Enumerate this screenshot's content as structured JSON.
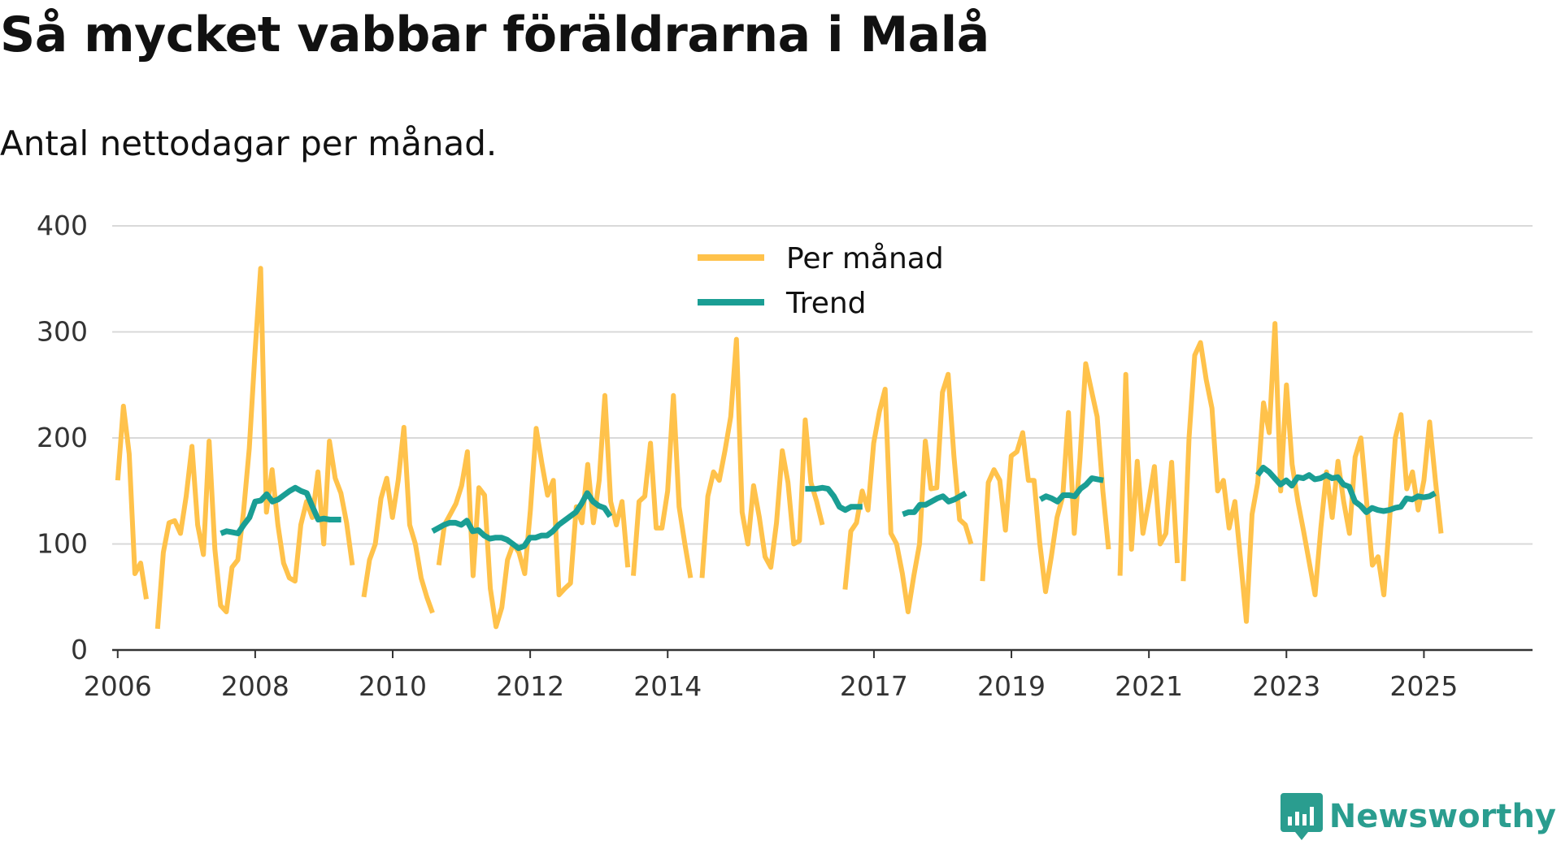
{
  "header": {
    "title": "Så mycket vabbar föräldrarna i Malå",
    "subtitle": "Antal nettodagar per månad."
  },
  "brand": {
    "name": "Newsworthy",
    "icon": "bar-chart-speech-bubble-icon"
  },
  "colors": {
    "per_month": "#ffc24b",
    "trend": "#1a9e94",
    "grid": "#d9d9d9",
    "axis": "#333333"
  },
  "chart_data": {
    "type": "line",
    "title": "Så mycket vabbar föräldrarna i Malå",
    "subtitle": "Antal nettodagar per månad.",
    "xlabel": "",
    "ylabel": "",
    "ylim": [
      0,
      400
    ],
    "xlim": [
      2005.92,
      2026.58
    ],
    "yticks": [
      0,
      100,
      200,
      300,
      400
    ],
    "xticks": [
      {
        "value": 2006.0,
        "label": "2006"
      },
      {
        "value": 2008.0,
        "label": "2008"
      },
      {
        "value": 2010.0,
        "label": "2010"
      },
      {
        "value": 2012.0,
        "label": "2012"
      },
      {
        "value": 2014.0,
        "label": "2014"
      },
      {
        "value": 2017.0,
        "label": "2017"
      },
      {
        "value": 2019.0,
        "label": "2019"
      },
      {
        "value": 2021.0,
        "label": "2021"
      },
      {
        "value": 2023.0,
        "label": "2023"
      },
      {
        "value": 2025.0,
        "label": "2025"
      }
    ],
    "legend_position": "top-center",
    "series": [
      {
        "name": "Per månad",
        "segments": [
          {
            "start": 2006.0,
            "values": [
              160,
              230,
              185,
              72,
              82,
              48
            ]
          },
          {
            "start": 2006.58,
            "values": [
              20,
              92,
              120,
              122,
              110,
              145,
              192,
              118,
              90,
              197,
              95,
              42,
              36,
              78,
              85,
              130,
              190,
              280,
              360,
              130,
              170,
              118,
              82,
              68,
              65,
              118,
              140,
              125,
              168,
              100,
              197,
              162,
              148,
              120,
              80
            ]
          },
          {
            "start": 2009.58,
            "values": [
              50,
              85,
              100,
              143,
              162,
              125,
              160,
              210,
              118,
              100,
              68,
              50,
              35
            ]
          },
          {
            "start": 2010.67,
            "values": [
              80,
              118,
              128,
              138,
              155,
              187,
              70,
              153,
              146,
              58,
              22,
              40,
              85,
              100,
              92,
              72,
              132,
              209,
              176,
              146,
              160,
              52,
              58,
              63,
              135,
              120,
              175,
              120,
              160,
              240,
              140,
              118,
              140,
              78
            ]
          },
          {
            "start": 2013.5,
            "values": [
              70,
              140,
              145,
              195,
              115,
              115,
              150,
              240,
              135,
              100,
              68
            ]
          },
          {
            "start": 2014.5,
            "values": [
              68,
              145,
              168,
              160,
              188,
              220,
              293,
              130,
              100,
              155,
              125,
              88,
              78,
              120,
              188,
              158,
              100,
              103,
              217,
              158,
              140,
              118
            ]
          },
          {
            "start": 2016.58,
            "values": [
              57,
              112,
              120,
              150,
              132,
              195,
              225,
              246,
              110,
              100,
              72,
              36,
              70,
              100,
              197,
              152,
              153,
              243,
              260,
              183,
              123,
              118,
              100
            ]
          },
          {
            "start": 2018.58,
            "values": [
              65,
              158,
              170,
              160,
              113,
              183,
              187,
              205,
              160,
              160,
              100,
              55,
              88,
              125,
              145,
              224,
              110,
              180,
              270,
              245,
              220,
              150,
              95
            ]
          },
          {
            "start": 2020.58,
            "values": [
              70,
              260,
              95,
              178,
              110,
              140,
              173,
              100,
              110,
              177,
              82
            ]
          },
          {
            "start": 2021.5,
            "values": [
              65,
              200,
              278,
              290,
              255,
              228,
              150,
              160,
              115,
              140,
              85,
              27,
              128,
              158,
              233,
              205,
              308,
              150,
              250,
              175,
              140,
              112,
              82,
              52,
              115,
              168,
              125,
              178,
              140,
              110,
              182,
              200,
              140,
              80,
              88,
              52,
              122,
              200,
              222,
              152,
              168,
              132,
              160,
              215,
              160,
              110
            ]
          }
        ]
      },
      {
        "name": "Trend",
        "segments": [
          {
            "start": 2007.5,
            "values": [
              110,
              112,
              111,
              110,
              118,
              125,
              140,
              141,
              147,
              140,
              142,
              146,
              150,
              153,
              150,
              148,
              135,
              123,
              124,
              123,
              123,
              123
            ]
          },
          {
            "start": 2010.58,
            "values": [
              112,
              115,
              118,
              120,
              120,
              118,
              122,
              112,
              113,
              108,
              105,
              106,
              106,
              104,
              100,
              96,
              98,
              106,
              106,
              108,
              108,
              112,
              118,
              122,
              126,
              130,
              138,
              148,
              140,
              136,
              134,
              126
            ]
          },
          {
            "start": 2016.0,
            "values": [
              152,
              152,
              152,
              153,
              152,
              145,
              135,
              132,
              135,
              135,
              135
            ]
          },
          {
            "start": 2017.42,
            "values": [
              128,
              130,
              130,
              137,
              137,
              140,
              143,
              145,
              140,
              142,
              145,
              148
            ]
          },
          {
            "start": 2019.42,
            "values": [
              142,
              145,
              143,
              140,
              146,
              146,
              145,
              152,
              156,
              162,
              161,
              160
            ]
          },
          {
            "start": 2022.58,
            "values": [
              165,
              172,
              168,
              162,
              156,
              160,
              155,
              163,
              162,
              165,
              161,
              162,
              165,
              162,
              163,
              156,
              154,
              140,
              136,
              130,
              134,
              132,
              131,
              132,
              134,
              135,
              143,
              142,
              145,
              144,
              145,
              148
            ]
          }
        ]
      }
    ]
  }
}
